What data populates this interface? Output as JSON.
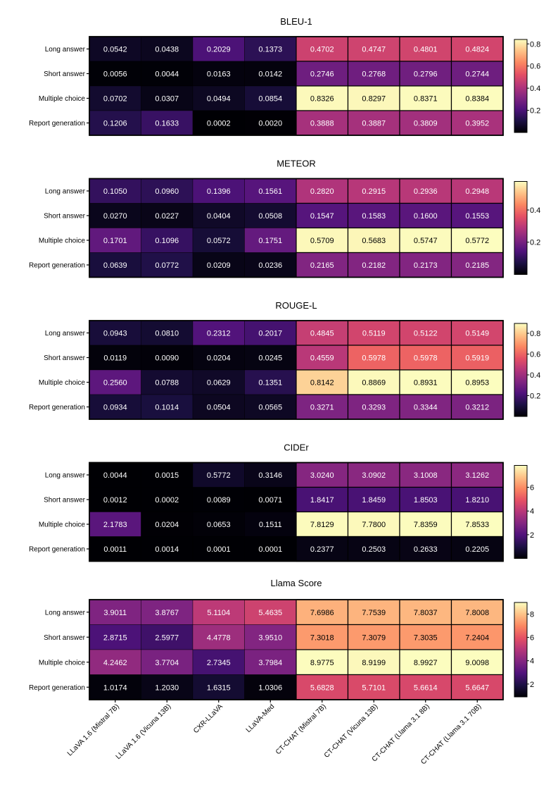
{
  "chart_data": {
    "type": "heatmap",
    "rows": [
      "Long answer",
      "Short answer",
      "Multiple choice",
      "Report generation"
    ],
    "columns": [
      "LLaVA 1.6 (Mistral 7B)",
      "LLaVA 1.6 (Vicuna 13B)",
      "CXR-LLaVA",
      "LLaVA-Med",
      "CT-CHAT (Mistral 7B)",
      "CT-CHAT (Vicuna 13B)",
      "CT-CHAT (Llama 3.1 8B)",
      "CT-CHAT (Llama 3.1 70B)"
    ],
    "colormap": "magma",
    "panels": [
      {
        "title": "BLEU-1",
        "scale": [
          0,
          0.84
        ],
        "ticks": [
          {
            "v": 0.2,
            "t": "0.2"
          },
          {
            "v": 0.4,
            "t": "0.4"
          },
          {
            "v": 0.6,
            "t": "0.6"
          },
          {
            "v": 0.8,
            "t": "0.8"
          }
        ],
        "values": [
          [
            0.0542,
            0.0438,
            0.2029,
            0.1373,
            0.4702,
            0.4747,
            0.4801,
            0.4824
          ],
          [
            0.0056,
            0.0044,
            0.0163,
            0.0142,
            0.2746,
            0.2768,
            0.2796,
            0.2744
          ],
          [
            0.0702,
            0.0307,
            0.0494,
            0.0854,
            0.8326,
            0.8297,
            0.8371,
            0.8384
          ],
          [
            0.1206,
            0.1633,
            0.0002,
            0.002,
            0.3888,
            0.3887,
            0.3809,
            0.3952
          ]
        ],
        "labels": [
          [
            "0.0542",
            "0.0438",
            "0.2029",
            "0.1373",
            "0.4702",
            "0.4747",
            "0.4801",
            "0.4824"
          ],
          [
            "0.0056",
            "0.0044",
            "0.0163",
            "0.0142",
            "0.2746",
            "0.2768",
            "0.2796",
            "0.2744"
          ],
          [
            "0.0702",
            "0.0307",
            "0.0494",
            "0.0854",
            "0.8326",
            "0.8297",
            "0.8371",
            "0.8384"
          ],
          [
            "0.1206",
            "0.1633",
            "0.0002",
            "0.0020",
            "0.3888",
            "0.3887",
            "0.3809",
            "0.3952"
          ]
        ]
      },
      {
        "title": "METEOR",
        "scale": [
          0,
          0.577
        ],
        "ticks": [
          {
            "v": 0.2,
            "t": "0.2"
          },
          {
            "v": 0.4,
            "t": "0.4"
          }
        ],
        "values": [
          [
            0.105,
            0.096,
            0.1396,
            0.1561,
            0.282,
            0.2915,
            0.2936,
            0.2948
          ],
          [
            0.027,
            0.0227,
            0.0404,
            0.0508,
            0.1547,
            0.1583,
            0.16,
            0.1553
          ],
          [
            0.1701,
            0.1096,
            0.0572,
            0.1751,
            0.5709,
            0.5683,
            0.5747,
            0.5772
          ],
          [
            0.0639,
            0.0772,
            0.0209,
            0.0236,
            0.2165,
            0.2182,
            0.2173,
            0.2185
          ]
        ],
        "labels": [
          [
            "0.1050",
            "0.0960",
            "0.1396",
            "0.1561",
            "0.2820",
            "0.2915",
            "0.2936",
            "0.2948"
          ],
          [
            "0.0270",
            "0.0227",
            "0.0404",
            "0.0508",
            "0.1547",
            "0.1583",
            "0.1600",
            "0.1553"
          ],
          [
            "0.1701",
            "0.1096",
            "0.0572",
            "0.1751",
            "0.5709",
            "0.5683",
            "0.5747",
            "0.5772"
          ],
          [
            "0.0639",
            "0.0772",
            "0.0209",
            "0.0236",
            "0.2165",
            "0.2182",
            "0.2173",
            "0.2185"
          ]
        ]
      },
      {
        "title": "ROUGE-L",
        "scale": [
          0,
          0.895
        ],
        "ticks": [
          {
            "v": 0.2,
            "t": "0.2"
          },
          {
            "v": 0.4,
            "t": "0.4"
          },
          {
            "v": 0.6,
            "t": "0.6"
          },
          {
            "v": 0.8,
            "t": "0.8"
          }
        ],
        "values": [
          [
            0.0943,
            0.081,
            0.2312,
            0.2017,
            0.4845,
            0.5119,
            0.5122,
            0.5149
          ],
          [
            0.0119,
            0.009,
            0.0204,
            0.0245,
            0.4559,
            0.5978,
            0.5978,
            0.5919
          ],
          [
            0.256,
            0.0788,
            0.0629,
            0.1351,
            0.8142,
            0.8869,
            0.8931,
            0.8953
          ],
          [
            0.0934,
            0.1014,
            0.0504,
            0.0565,
            0.3271,
            0.3293,
            0.3344,
            0.3212
          ]
        ],
        "labels": [
          [
            "0.0943",
            "0.0810",
            "0.2312",
            "0.2017",
            "0.4845",
            "0.5119",
            "0.5122",
            "0.5149"
          ],
          [
            "0.0119",
            "0.0090",
            "0.0204",
            "0.0245",
            "0.4559",
            "0.5978",
            "0.5978",
            "0.5919"
          ],
          [
            "0.2560",
            "0.0788",
            "0.0629",
            "0.1351",
            "0.8142",
            "0.8869",
            "0.8931",
            "0.8953"
          ],
          [
            "0.0934",
            "0.1014",
            "0.0504",
            "0.0565",
            "0.3271",
            "0.3293",
            "0.3344",
            "0.3212"
          ]
        ]
      },
      {
        "title": "CIDEr",
        "scale": [
          0,
          7.85
        ],
        "ticks": [
          {
            "v": 2,
            "t": "2"
          },
          {
            "v": 4,
            "t": "4"
          },
          {
            "v": 6,
            "t": "6"
          }
        ],
        "values": [
          [
            0.0044,
            0.0015,
            0.5772,
            0.3146,
            3.024,
            3.0902,
            3.1008,
            3.1262
          ],
          [
            0.0012,
            0.0002,
            0.0089,
            0.0071,
            1.8417,
            1.8459,
            1.8503,
            1.821
          ],
          [
            2.1783,
            0.0204,
            0.0653,
            0.1511,
            7.8129,
            7.78,
            7.8359,
            7.8533
          ],
          [
            0.0011,
            0.0014,
            0.0001,
            0.0001,
            0.2377,
            0.2503,
            0.2633,
            0.2205
          ]
        ],
        "labels": [
          [
            "0.0044",
            "0.0015",
            "0.5772",
            "0.3146",
            "3.0240",
            "3.0902",
            "3.1008",
            "3.1262"
          ],
          [
            "0.0012",
            "0.0002",
            "0.0089",
            "0.0071",
            "1.8417",
            "1.8459",
            "1.8503",
            "1.8210"
          ],
          [
            "2.1783",
            "0.0204",
            "0.0653",
            "0.1511",
            "7.8129",
            "7.7800",
            "7.8359",
            "7.8533"
          ],
          [
            "0.0011",
            "0.0014",
            "0.0001",
            "0.0001",
            "0.2377",
            "0.2503",
            "0.2633",
            "0.2205"
          ]
        ]
      },
      {
        "title": "Llama Score",
        "scale": [
          0.9,
          9.0
        ],
        "ticks": [
          {
            "v": 2,
            "t": "2"
          },
          {
            "v": 4,
            "t": "4"
          },
          {
            "v": 6,
            "t": "6"
          },
          {
            "v": 8,
            "t": "8"
          }
        ],
        "values": [
          [
            3.9011,
            3.8767,
            5.1104,
            5.4635,
            7.6986,
            7.7539,
            7.8037,
            7.8008
          ],
          [
            2.8715,
            2.5977,
            4.4778,
            3.951,
            7.3018,
            7.3079,
            7.3035,
            7.2404
          ],
          [
            4.2462,
            3.7704,
            2.7345,
            3.7984,
            8.9775,
            8.9199,
            8.9927,
            9.0098
          ],
          [
            1.0174,
            1.203,
            1.6315,
            1.0306,
            5.6828,
            5.7101,
            5.6614,
            5.6647
          ]
        ],
        "labels": [
          [
            "3.9011",
            "3.8767",
            "5.1104",
            "5.4635",
            "7.6986",
            "7.7539",
            "7.8037",
            "7.8008"
          ],
          [
            "2.8715",
            "2.5977",
            "4.4778",
            "3.9510",
            "7.3018",
            "7.3079",
            "7.3035",
            "7.2404"
          ],
          [
            "4.2462",
            "3.7704",
            "2.7345",
            "3.7984",
            "8.9775",
            "8.9199",
            "8.9927",
            "9.0098"
          ],
          [
            "1.0174",
            "1.2030",
            "1.6315",
            "1.0306",
            "5.6828",
            "5.7101",
            "5.6614",
            "5.6647"
          ]
        ]
      }
    ]
  }
}
